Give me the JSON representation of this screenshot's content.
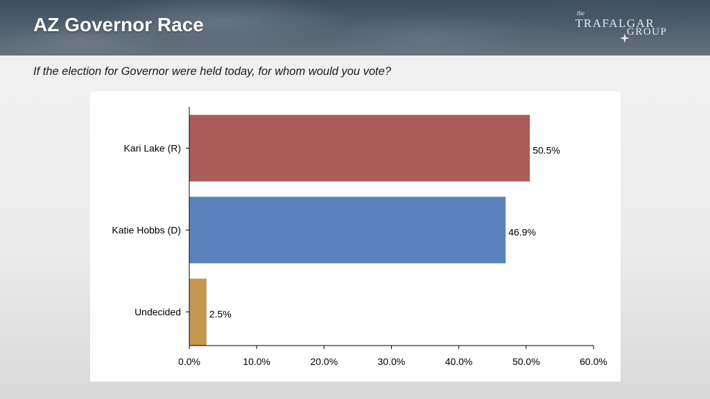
{
  "slide": {
    "title": "AZ Governor Race",
    "question": "If the election for Governor were held today, for whom would you vote?"
  },
  "logo": {
    "the": "the",
    "line1": "TRAFALGAR",
    "line2": "GROUP",
    "icon": "compass-star-icon"
  },
  "chart_data": {
    "type": "bar",
    "orientation": "horizontal",
    "categories": [
      "Kari Lake (R)",
      "Katie Hobbs (D)",
      "Undecided"
    ],
    "values": [
      50.5,
      46.9,
      2.5
    ],
    "value_labels": [
      "50.5%",
      "46.9%",
      "2.5%"
    ],
    "colors": [
      "#ab5c58",
      "#5b82ba",
      "#c4974f"
    ],
    "xlim": [
      0,
      60
    ],
    "xticks": [
      0,
      10,
      20,
      30,
      40,
      50,
      60
    ],
    "xtick_labels": [
      "0.0%",
      "10.0%",
      "20.0%",
      "30.0%",
      "40.0%",
      "50.0%",
      "60.0%"
    ],
    "grid": false,
    "legend": "none"
  }
}
